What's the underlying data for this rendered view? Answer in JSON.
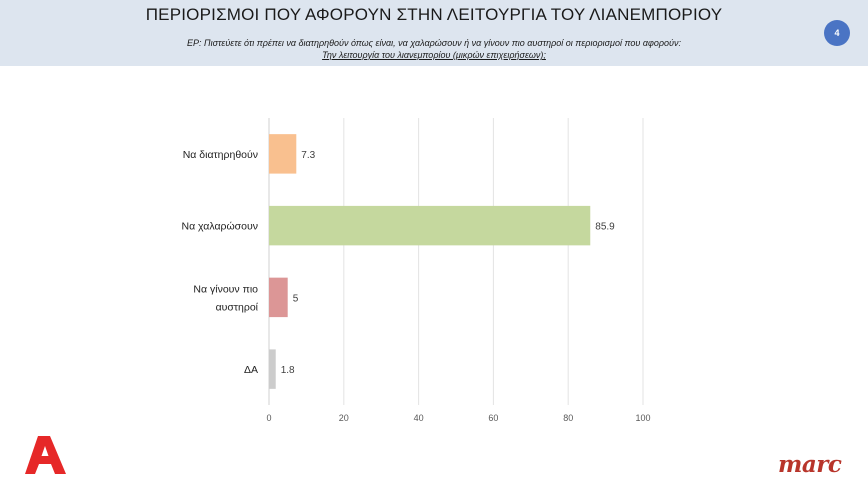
{
  "header": {
    "title": "ΠΕΡΙΟΡΙΣΜΟΙ ΠΟΥ ΑΦΟΡΟΥΝ ΣΤΗΝ ΛΕΙΤΟΥΡΓΙΑ ΤΟΥ ΛΙΑΝΕΜΠΟΡΙΟΥ",
    "question_line1": "ΕΡ:  Πιστεύετε ότι πρέπει  να διατηρηθούν όπως είναι, να χαλαρώσουν ή να γίνουν πιο αυστηροί  οι περιορισμοί που αφορούν:",
    "question_line2": "Την λειτουργία του λιανεμπορίου (μικρών επιχειρήσεων);",
    "page_number": "4"
  },
  "chart_data": {
    "type": "bar",
    "orientation": "horizontal",
    "categories": [
      "Να διατηρηθούν",
      "Να χαλαρώσουν",
      "Να γίνουν πιο αυστηροί",
      "ΔΑ"
    ],
    "category_lines": [
      [
        "Να διατηρηθούν"
      ],
      [
        "Να χαλαρώσουν"
      ],
      [
        "Να γίνουν πιο",
        "αυστηροί"
      ],
      [
        "ΔΑ"
      ]
    ],
    "values": [
      7.3,
      85.9,
      5,
      1.8
    ],
    "value_labels": [
      "7.3",
      "85.9",
      "5",
      "1.8"
    ],
    "colors": [
      "#f9c08f",
      "#c5d89e",
      "#dc9696",
      "#cccccc"
    ],
    "xlim": [
      0,
      100
    ],
    "xticks": [
      "0",
      "20",
      "40",
      "60",
      "80",
      "100"
    ],
    "grid": true,
    "title": "",
    "xlabel": "",
    "ylabel": ""
  },
  "logos": {
    "left_icon": "alpha-tv-logo",
    "right_text": "marc"
  }
}
